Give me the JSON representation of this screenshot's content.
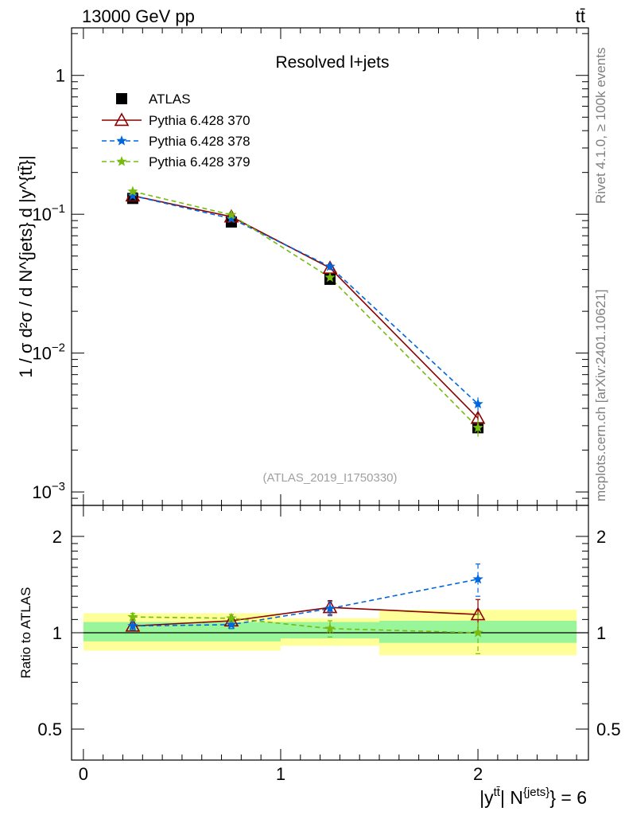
{
  "header": {
    "left": "13000 GeV pp",
    "right": "tt̄"
  },
  "side_notes": {
    "rivet": "Rivet 4.1.0, ≥ 100k events",
    "mcplots": "mcplots.cern.ch [arXiv:2401.10621]"
  },
  "colors": {
    "atlas": "#000000",
    "p370": "#8b0000",
    "p378": "#0066dd",
    "p379": "#77bb11",
    "band_inner": "#99f599",
    "band_outer": "#ffff99"
  },
  "chart_data": [
    {
      "type": "line",
      "panel": "main",
      "title": "Resolved l+jets",
      "watermark": "(ATLAS_2019_I1750330)",
      "ylabel": "1 / σ d²σ / d N^{jets} d |y^{tt̄}|",
      "yscale": "log",
      "ylim": [
        0.0008,
        2.2
      ],
      "xlim": [
        -0.06,
        2.56
      ],
      "y_ticks": [
        {
          "value": 0.001,
          "label_base": "10",
          "label_exp": "−3"
        },
        {
          "value": 0.01,
          "label_base": "10",
          "label_exp": "−2"
        },
        {
          "value": 0.1,
          "label_base": "10",
          "label_exp": "−1"
        },
        {
          "value": 1,
          "label_base": "1",
          "label_exp": ""
        }
      ],
      "x": [
        0.25,
        0.75,
        1.25,
        2.0
      ],
      "series": [
        {
          "name": "ATLAS",
          "marker": "square",
          "values": [
            0.13,
            0.088,
            0.034,
            0.0029
          ]
        },
        {
          "name": "Pythia 6.428 370",
          "marker": "triangle",
          "values": [
            0.136,
            0.096,
            0.041,
            0.0034
          ],
          "errors": [
            0.003,
            0.002,
            0.0015,
            0.0003
          ]
        },
        {
          "name": "Pythia 6.428 378",
          "marker": "star",
          "values": [
            0.136,
            0.093,
            0.042,
            0.0043
          ],
          "errors": [
            0.003,
            0.002,
            0.0015,
            0.0005
          ]
        },
        {
          "name": "Pythia 6.428 379",
          "marker": "star",
          "values": [
            0.146,
            0.099,
            0.035,
            0.0029
          ],
          "errors": [
            0.003,
            0.002,
            0.0015,
            0.0004
          ]
        }
      ],
      "legend": "top-left"
    },
    {
      "type": "line",
      "panel": "ratio",
      "ylabel": "Ratio to ATLAS",
      "xlabel_main": "|y",
      "xlabel_sup": "tt̄",
      "xlabel_rest": "| N",
      "xlabel_sup2": "{jets}",
      "xlabel_end": "} = 6",
      "yscale": "log",
      "ylim": [
        0.4,
        2.5
      ],
      "xlim": [
        -0.06,
        2.56
      ],
      "y_ticks": [
        0.5,
        1,
        2
      ],
      "x_ticks": [
        0,
        1,
        2
      ],
      "reference": 1,
      "bands": [
        {
          "x0": 0.0,
          "x1": 1.0,
          "inner": [
            0.94,
            1.08
          ],
          "outer": [
            0.88,
            1.15
          ]
        },
        {
          "x0": 1.0,
          "x1": 1.5,
          "inner": [
            0.96,
            1.08
          ],
          "outer": [
            0.91,
            1.11
          ]
        },
        {
          "x0": 1.5,
          "x1": 2.5,
          "inner": [
            0.93,
            1.09
          ],
          "outer": [
            0.85,
            1.18
          ]
        }
      ],
      "x": [
        0.25,
        0.75,
        1.25,
        2.0
      ],
      "series": [
        {
          "name": "Pythia 6.428 370",
          "values": [
            1.05,
            1.09,
            1.2,
            1.14
          ],
          "errors": [
            0.03,
            0.03,
            0.06,
            0.13
          ]
        },
        {
          "name": "Pythia 6.428 378",
          "values": [
            1.05,
            1.06,
            1.19,
            1.47
          ],
          "errors": [
            0.03,
            0.03,
            0.06,
            0.17
          ]
        },
        {
          "name": "Pythia 6.428 379",
          "values": [
            1.12,
            1.11,
            1.03,
            1.0
          ],
          "errors": [
            0.03,
            0.03,
            0.06,
            0.14
          ]
        }
      ]
    }
  ]
}
